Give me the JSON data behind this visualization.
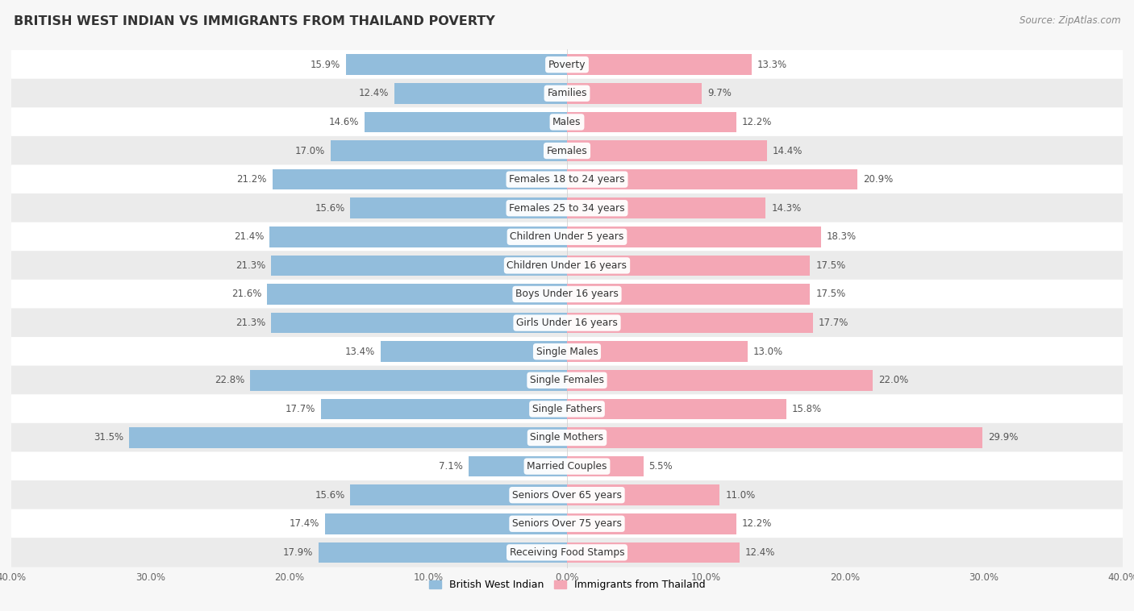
{
  "title": "BRITISH WEST INDIAN VS IMMIGRANTS FROM THAILAND POVERTY",
  "source": "Source: ZipAtlas.com",
  "categories": [
    "Poverty",
    "Families",
    "Males",
    "Females",
    "Females 18 to 24 years",
    "Females 25 to 34 years",
    "Children Under 5 years",
    "Children Under 16 years",
    "Boys Under 16 years",
    "Girls Under 16 years",
    "Single Males",
    "Single Females",
    "Single Fathers",
    "Single Mothers",
    "Married Couples",
    "Seniors Over 65 years",
    "Seniors Over 75 years",
    "Receiving Food Stamps"
  ],
  "british_west_indian": [
    15.9,
    12.4,
    14.6,
    17.0,
    21.2,
    15.6,
    21.4,
    21.3,
    21.6,
    21.3,
    13.4,
    22.8,
    17.7,
    31.5,
    7.1,
    15.6,
    17.4,
    17.9
  ],
  "thailand": [
    13.3,
    9.7,
    12.2,
    14.4,
    20.9,
    14.3,
    18.3,
    17.5,
    17.5,
    17.7,
    13.0,
    22.0,
    15.8,
    29.9,
    5.5,
    11.0,
    12.2,
    12.4
  ],
  "blue_color": "#92BDDC",
  "pink_color": "#F4A7B5",
  "xlim": 40.0,
  "background_color": "#f7f7f7",
  "row_bg_white": "#ffffff",
  "row_bg_gray": "#ebebeb",
  "label_color": "#555555",
  "category_color": "#333333",
  "bar_height": 0.72,
  "tick_positions": [
    -40,
    -30,
    -20,
    -10,
    0,
    10,
    20,
    30,
    40
  ],
  "tick_labels": [
    "40.0%",
    "30.0%",
    "20.0%",
    "10.0%",
    "0.0%",
    "10.0%",
    "20.0%",
    "30.0%",
    "40.0%"
  ]
}
